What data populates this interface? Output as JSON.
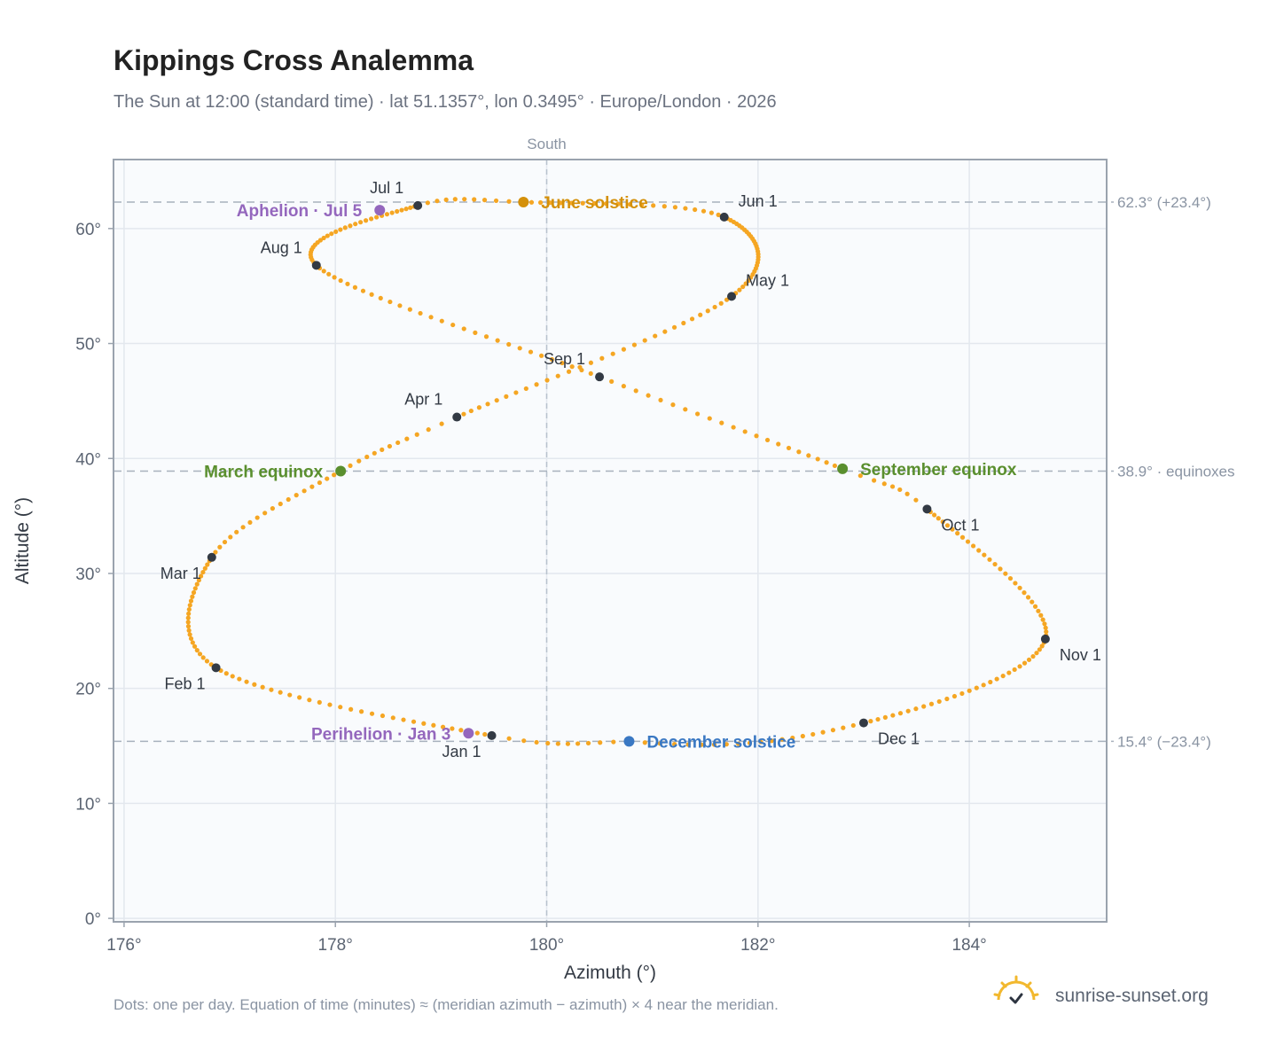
{
  "title": "Kippings Cross Analemma",
  "subtitle": "The Sun at 12:00 (standard time) · lat 51.1357°, lon 0.3495° · Europe/London · 2026",
  "footnote": "Dots: one per day. Equation of time (minutes) ≈ (meridian azimuth − azimuth) × 4 near the meridian.",
  "brand": {
    "text": "sunrise-sunset.org",
    "icon": "sun-logo-icon"
  },
  "chart_data": {
    "type": "scatter",
    "xlabel": "Azimuth (°)",
    "ylabel": "Altitude (°)",
    "xlim": [
      175.9,
      185.3
    ],
    "ylim": [
      -0.3,
      66
    ],
    "xticks": [
      176,
      178,
      180,
      182,
      184
    ],
    "yticks": [
      0,
      10,
      20,
      30,
      40,
      50,
      60
    ],
    "x_tick_suffix": "°",
    "y_tick_suffix": "°",
    "grid": true,
    "meridian": {
      "azimuth": 180,
      "label": "South"
    },
    "reference_lines": [
      {
        "altitude": 62.3,
        "label": "62.3° (+23.4°)"
      },
      {
        "altitude": 38.9,
        "label": "38.9° · equinoxes"
      },
      {
        "altitude": 15.4,
        "label": "15.4° (−23.4°)"
      }
    ],
    "colors": {
      "path": "#f5a623",
      "month_marker": "#333a44",
      "solstice_june": "#d4900a",
      "solstice_december": "#3a78c3",
      "equinox": "#5a8f2e",
      "apsis": "#9467bd",
      "reference_line": "#a8b1bd"
    },
    "daily_path": {
      "points_per_year": 365,
      "anchors": [
        {
          "day": 0,
          "azimuth": 179.48,
          "altitude": 15.9
        },
        {
          "day": 31,
          "azimuth": 176.87,
          "altitude": 21.8
        },
        {
          "day": 59,
          "azimuth": 176.83,
          "altitude": 31.4
        },
        {
          "day": 78,
          "azimuth": 178.05,
          "altitude": 38.9
        },
        {
          "day": 90,
          "azimuth": 179.15,
          "altitude": 43.6
        },
        {
          "day": 120,
          "azimuth": 181.75,
          "altitude": 54.1
        },
        {
          "day": 151,
          "azimuth": 181.68,
          "altitude": 61.0
        },
        {
          "day": 171,
          "azimuth": 179.78,
          "altitude": 62.3
        },
        {
          "day": 181,
          "azimuth": 178.78,
          "altitude": 62.0
        },
        {
          "day": 212,
          "azimuth": 177.82,
          "altitude": 56.8
        },
        {
          "day": 243,
          "azimuth": 180.5,
          "altitude": 47.1
        },
        {
          "day": 265,
          "azimuth": 182.8,
          "altitude": 39.1
        },
        {
          "day": 273,
          "azimuth": 183.6,
          "altitude": 35.6
        },
        {
          "day": 304,
          "azimuth": 184.72,
          "altitude": 24.3
        },
        {
          "day": 334,
          "azimuth": 183.0,
          "altitude": 17.0
        },
        {
          "day": 354,
          "azimuth": 180.78,
          "altitude": 15.4
        },
        {
          "day": 365,
          "azimuth": 179.48,
          "altitude": 15.9
        }
      ]
    },
    "month_markers": [
      {
        "label": "Jan 1",
        "azimuth": 179.48,
        "altitude": 15.9,
        "label_pos": "below-left"
      },
      {
        "label": "Feb 1",
        "azimuth": 176.87,
        "altitude": 21.8,
        "label_pos": "below-left"
      },
      {
        "label": "Mar 1",
        "azimuth": 176.83,
        "altitude": 31.4,
        "label_pos": "below-left"
      },
      {
        "label": "Apr 1",
        "azimuth": 179.15,
        "altitude": 43.6,
        "label_pos": "above-left"
      },
      {
        "label": "May 1",
        "azimuth": 181.75,
        "altitude": 54.1,
        "label_pos": "above-right"
      },
      {
        "label": "Jun 1",
        "azimuth": 181.68,
        "altitude": 61.0,
        "label_pos": "above-right"
      },
      {
        "label": "Jul 1",
        "azimuth": 178.78,
        "altitude": 62.0,
        "label_pos": "above-left"
      },
      {
        "label": "Aug 1",
        "azimuth": 177.82,
        "altitude": 56.8,
        "label_pos": "above-left"
      },
      {
        "label": "Sep 1",
        "azimuth": 180.5,
        "altitude": 47.1,
        "label_pos": "above-left"
      },
      {
        "label": "Oct 1",
        "azimuth": 183.6,
        "altitude": 35.6,
        "label_pos": "below-right"
      },
      {
        "label": "Nov 1",
        "azimuth": 184.72,
        "altitude": 24.3,
        "label_pos": "below-right"
      },
      {
        "label": "Dec 1",
        "azimuth": 183.0,
        "altitude": 17.0,
        "label_pos": "below-right"
      }
    ],
    "events": [
      {
        "label": "June solstice",
        "azimuth": 179.78,
        "altitude": 62.3,
        "kind": "solstice_june",
        "label_side": "right"
      },
      {
        "label": "December solstice",
        "azimuth": 180.78,
        "altitude": 15.4,
        "kind": "solstice_december",
        "label_side": "right"
      },
      {
        "label": "March equinox",
        "azimuth": 178.05,
        "altitude": 38.9,
        "kind": "equinox",
        "label_side": "left"
      },
      {
        "label": "September equinox",
        "azimuth": 182.8,
        "altitude": 39.1,
        "kind": "equinox",
        "label_side": "right"
      },
      {
        "label": "Aphelion · Jul 5",
        "azimuth": 178.42,
        "altitude": 61.6,
        "kind": "apsis",
        "label_side": "left"
      },
      {
        "label": "Perihelion · Jan 3",
        "azimuth": 179.26,
        "altitude": 16.1,
        "kind": "apsis",
        "label_side": "left"
      }
    ]
  }
}
